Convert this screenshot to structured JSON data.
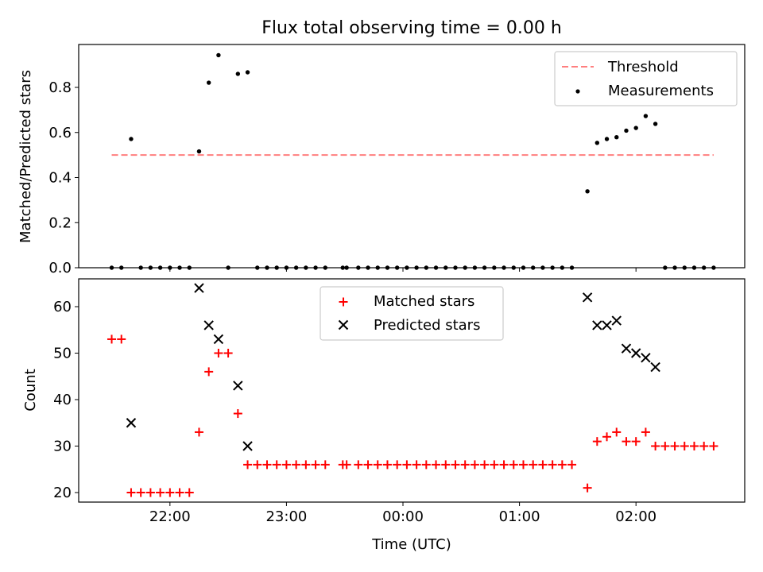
{
  "chart_data": [
    {
      "type": "scatter",
      "title": "Flux total observing time = 0.00 h",
      "xlabel": "",
      "ylabel": "Matched/Predicted stars",
      "ylim": [
        0,
        1.0
      ],
      "yticks": [
        "0.0",
        "0.2",
        "0.4",
        "0.6",
        "0.8"
      ],
      "xlim_hours_utc": [
        "21:13",
        "02:56"
      ],
      "xticks": [
        "22:00",
        "23:00",
        "00:00",
        "01:00",
        "02:00"
      ],
      "legend_placement": "top-right",
      "threshold": {
        "name": "Threshold",
        "value": 0.5,
        "x_start": "21:30",
        "x_end": "02:40",
        "color": "#ff7f7f",
        "style": "dashed"
      },
      "series": [
        {
          "name": "Measurements",
          "color": "#000000",
          "marker": "dot",
          "points": [
            [
              "21:30",
              0.0
            ],
            [
              "21:35",
              0.0
            ],
            [
              "21:40",
              0.571
            ],
            [
              "21:45",
              0.0
            ],
            [
              "21:50",
              0.0
            ],
            [
              "21:55",
              0.0
            ],
            [
              "22:00",
              0.0
            ],
            [
              "22:05",
              0.0
            ],
            [
              "22:10",
              0.0
            ],
            [
              "22:15",
              0.516
            ],
            [
              "22:20",
              0.821
            ],
            [
              "22:25",
              0.943
            ],
            [
              "22:30",
              0.0
            ],
            [
              "22:35",
              0.86
            ],
            [
              "22:40",
              0.867
            ],
            [
              "22:45",
              0.0
            ],
            [
              "22:50",
              0.0
            ],
            [
              "22:55",
              0.0
            ],
            [
              "23:00",
              0.0
            ],
            [
              "23:05",
              0.0
            ],
            [
              "23:10",
              0.0
            ],
            [
              "23:15",
              0.0
            ],
            [
              "23:20",
              0.0
            ],
            [
              "23:29",
              0.0
            ],
            [
              "23:31",
              0.0
            ],
            [
              "23:37",
              0.0
            ],
            [
              "23:42",
              0.0
            ],
            [
              "23:47",
              0.0
            ],
            [
              "23:52",
              0.0
            ],
            [
              "23:57",
              0.0
            ],
            [
              "00:02",
              0.0
            ],
            [
              "00:07",
              0.0
            ],
            [
              "00:12",
              0.0
            ],
            [
              "00:17",
              0.0
            ],
            [
              "00:22",
              0.0
            ],
            [
              "00:27",
              0.0
            ],
            [
              "00:32",
              0.0
            ],
            [
              "00:37",
              0.0
            ],
            [
              "00:42",
              0.0
            ],
            [
              "00:47",
              0.0
            ],
            [
              "00:52",
              0.0
            ],
            [
              "00:57",
              0.0
            ],
            [
              "01:02",
              0.0
            ],
            [
              "01:07",
              0.0
            ],
            [
              "01:12",
              0.0
            ],
            [
              "01:17",
              0.0
            ],
            [
              "01:22",
              0.0
            ],
            [
              "01:27",
              0.0
            ],
            [
              "01:35",
              0.339
            ],
            [
              "01:40",
              0.554
            ],
            [
              "01:45",
              0.571
            ],
            [
              "01:50",
              0.579
            ],
            [
              "01:55",
              0.608
            ],
            [
              "02:00",
              0.62
            ],
            [
              "02:05",
              0.673
            ],
            [
              "02:10",
              0.638
            ],
            [
              "02:15",
              0.0
            ],
            [
              "02:20",
              0.0
            ],
            [
              "02:25",
              0.0
            ],
            [
              "02:30",
              0.0
            ],
            [
              "02:35",
              0.0
            ],
            [
              "02:40",
              0.0
            ]
          ]
        }
      ]
    },
    {
      "type": "scatter",
      "title": "",
      "xlabel": "Time (UTC)",
      "ylabel": "Count",
      "ylim": [
        18,
        66
      ],
      "yticks": [
        "20",
        "30",
        "40",
        "50",
        "60"
      ],
      "xlim_hours_utc": [
        "21:13",
        "02:56"
      ],
      "xticks": [
        "22:00",
        "23:00",
        "00:00",
        "01:00",
        "02:00"
      ],
      "legend_placement": "upper center",
      "series": [
        {
          "name": "Matched stars",
          "color": "#ff0000",
          "marker": "plus",
          "points": [
            [
              "21:30",
              53
            ],
            [
              "21:35",
              53
            ],
            [
              "21:40",
              20
            ],
            [
              "21:45",
              20
            ],
            [
              "21:50",
              20
            ],
            [
              "21:55",
              20
            ],
            [
              "22:00",
              20
            ],
            [
              "22:05",
              20
            ],
            [
              "22:10",
              20
            ],
            [
              "22:15",
              33
            ],
            [
              "22:20",
              46
            ],
            [
              "22:25",
              50
            ],
            [
              "22:30",
              50
            ],
            [
              "22:35",
              37
            ],
            [
              "22:40",
              26
            ],
            [
              "22:45",
              26
            ],
            [
              "22:50",
              26
            ],
            [
              "22:55",
              26
            ],
            [
              "23:00",
              26
            ],
            [
              "23:05",
              26
            ],
            [
              "23:10",
              26
            ],
            [
              "23:15",
              26
            ],
            [
              "23:20",
              26
            ],
            [
              "23:29",
              26
            ],
            [
              "23:31",
              26
            ],
            [
              "23:37",
              26
            ],
            [
              "23:42",
              26
            ],
            [
              "23:47",
              26
            ],
            [
              "23:52",
              26
            ],
            [
              "23:57",
              26
            ],
            [
              "00:02",
              26
            ],
            [
              "00:07",
              26
            ],
            [
              "00:12",
              26
            ],
            [
              "00:17",
              26
            ],
            [
              "00:22",
              26
            ],
            [
              "00:27",
              26
            ],
            [
              "00:32",
              26
            ],
            [
              "00:37",
              26
            ],
            [
              "00:42",
              26
            ],
            [
              "00:47",
              26
            ],
            [
              "00:52",
              26
            ],
            [
              "00:57",
              26
            ],
            [
              "01:02",
              26
            ],
            [
              "01:07",
              26
            ],
            [
              "01:12",
              26
            ],
            [
              "01:17",
              26
            ],
            [
              "01:22",
              26
            ],
            [
              "01:27",
              26
            ],
            [
              "01:35",
              21
            ],
            [
              "01:40",
              31
            ],
            [
              "01:45",
              32
            ],
            [
              "01:50",
              33
            ],
            [
              "01:55",
              31
            ],
            [
              "02:00",
              31
            ],
            [
              "02:05",
              33
            ],
            [
              "02:10",
              30
            ],
            [
              "02:15",
              30
            ],
            [
              "02:20",
              30
            ],
            [
              "02:25",
              30
            ],
            [
              "02:30",
              30
            ],
            [
              "02:35",
              30
            ],
            [
              "02:40",
              30
            ]
          ]
        },
        {
          "name": "Predicted stars",
          "color": "#000000",
          "marker": "x",
          "points": [
            [
              "21:40",
              35
            ],
            [
              "22:15",
              64
            ],
            [
              "22:20",
              56
            ],
            [
              "22:25",
              53
            ],
            [
              "22:35",
              43
            ],
            [
              "22:40",
              30
            ],
            [
              "01:35",
              62
            ],
            [
              "01:40",
              56
            ],
            [
              "01:45",
              56
            ],
            [
              "01:50",
              57
            ],
            [
              "01:55",
              51
            ],
            [
              "02:00",
              50
            ],
            [
              "02:05",
              49
            ],
            [
              "02:10",
              47
            ]
          ]
        }
      ]
    }
  ]
}
